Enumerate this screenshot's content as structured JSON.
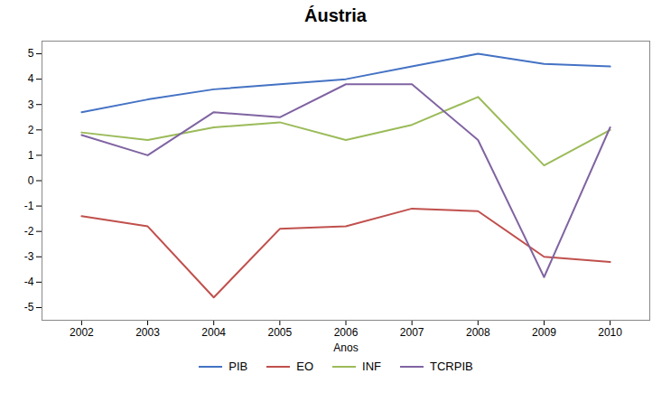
{
  "chart_data": {
    "type": "line",
    "title": "Áustria",
    "xlabel": "Anos",
    "x": [
      2002,
      2003,
      2004,
      2005,
      2006,
      2007,
      2008,
      2009,
      2010
    ],
    "series": [
      {
        "name": "PIB",
        "color": "#4472C4",
        "values": [
          2.7,
          3.2,
          3.6,
          3.8,
          4.0,
          4.5,
          5.0,
          4.6,
          4.5
        ]
      },
      {
        "name": "EO",
        "color": "#C0504D",
        "values": [
          -1.4,
          -1.8,
          -4.6,
          -1.9,
          -1.8,
          -1.1,
          -1.2,
          -3.0,
          -3.2
        ]
      },
      {
        "name": "INF",
        "color": "#9BBB59",
        "values": [
          1.9,
          1.6,
          2.1,
          2.3,
          1.6,
          2.2,
          3.3,
          0.6,
          2.0
        ]
      },
      {
        "name": "TCRPIB",
        "color": "#8064A2",
        "values": [
          1.8,
          1.0,
          2.7,
          2.5,
          3.8,
          3.8,
          1.6,
          -3.8,
          2.1
        ]
      }
    ],
    "xlim": [
      2001.4,
      2010.6
    ],
    "xticks": [
      2002,
      2003,
      2004,
      2005,
      2006,
      2007,
      2008,
      2009,
      2010
    ],
    "ylim": [
      -5.5,
      5.5
    ],
    "yticks": [
      -5,
      -4,
      -3,
      -2,
      -1,
      0,
      1,
      2,
      3,
      4,
      5
    ],
    "grid": false,
    "legend": "bottom"
  }
}
